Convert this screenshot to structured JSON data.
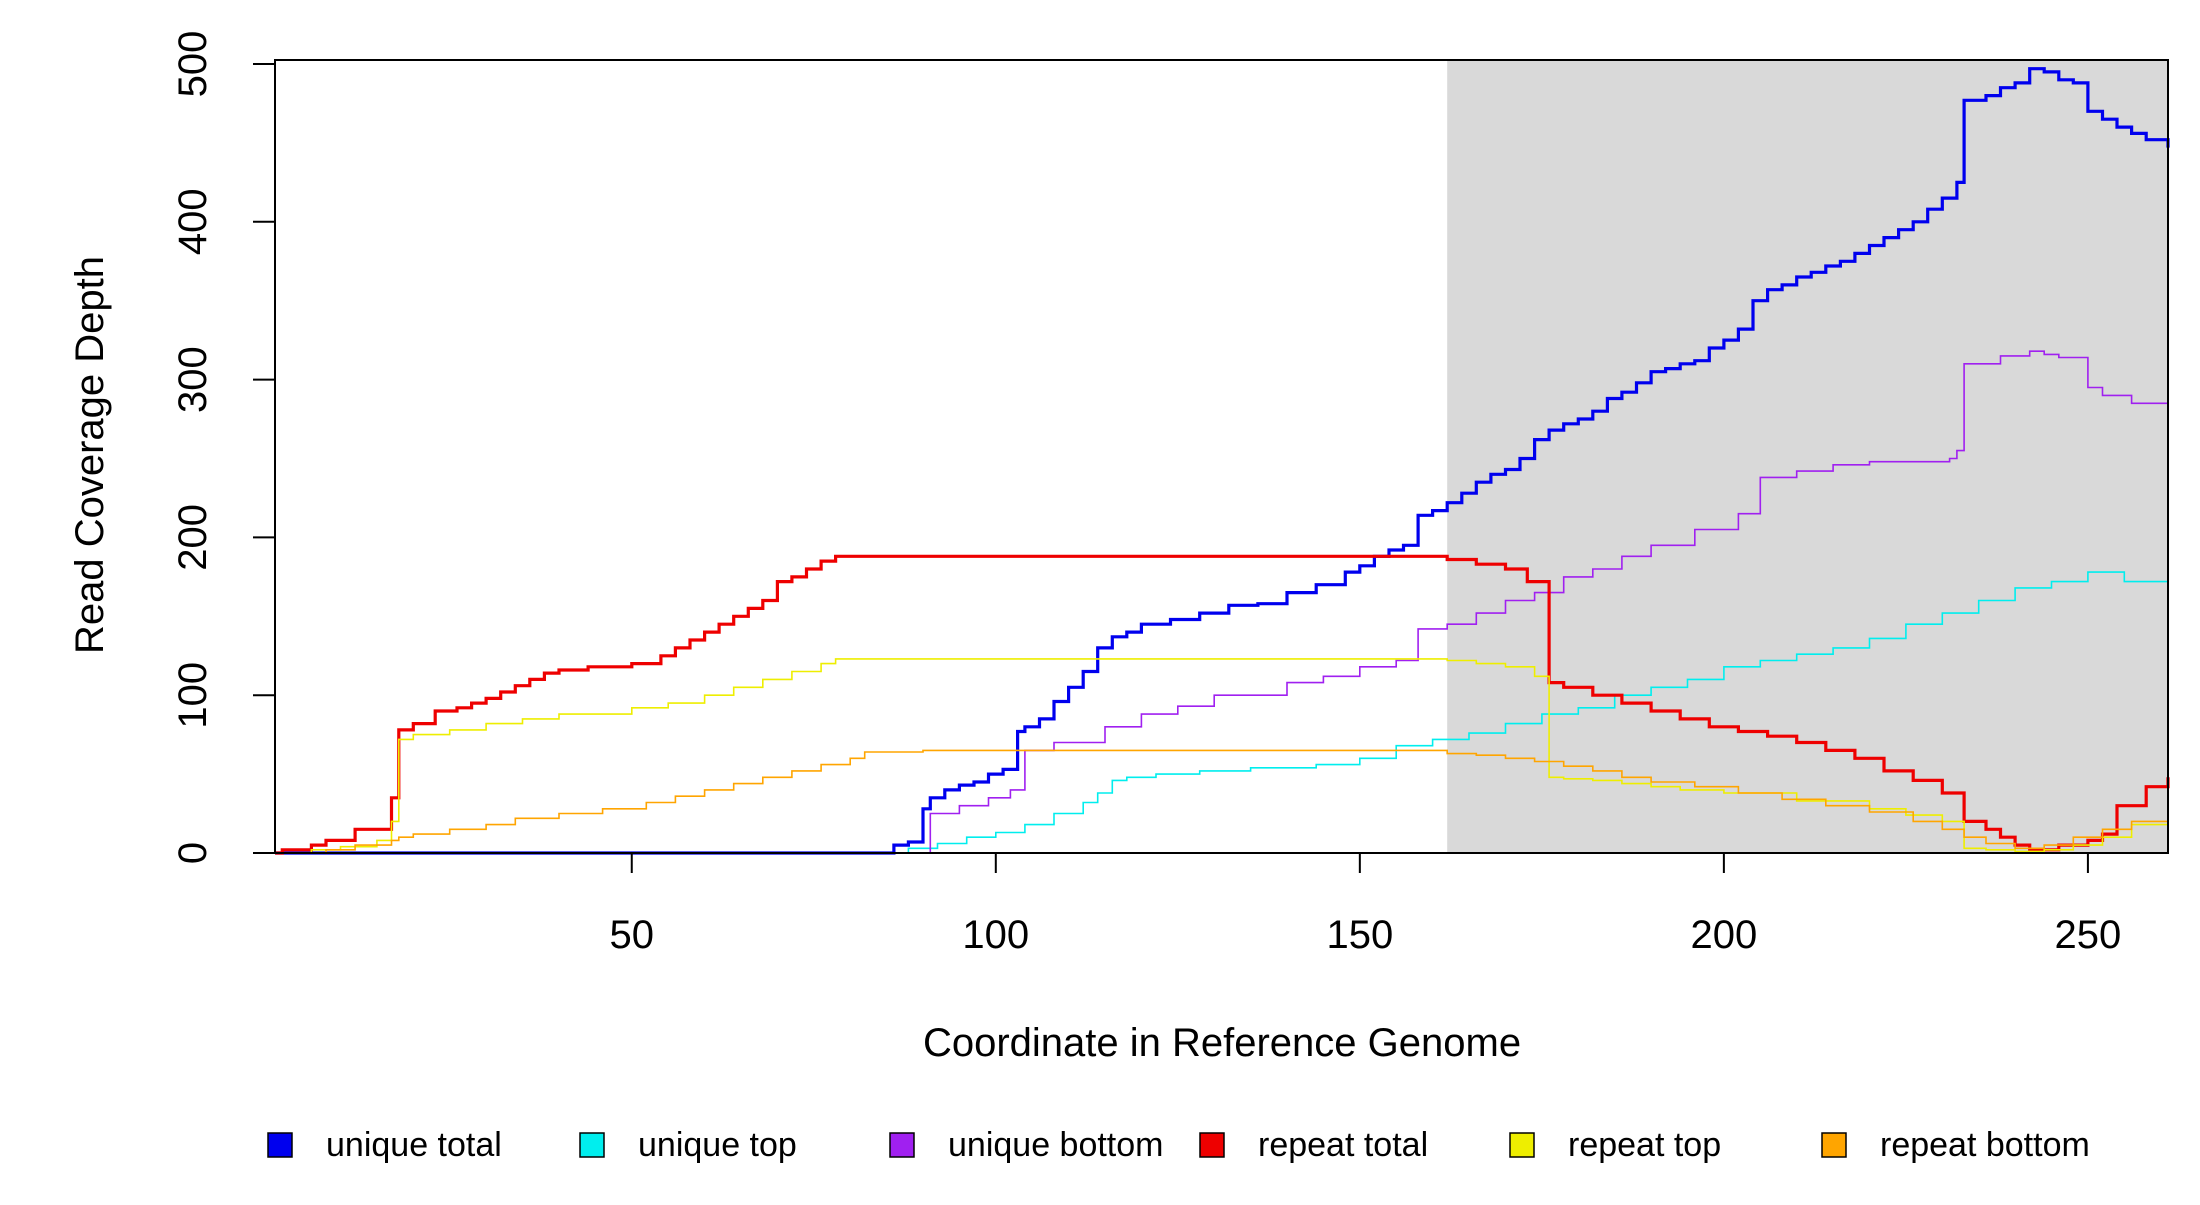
{
  "chart_data": {
    "type": "line",
    "title": "",
    "xlabel": "Coordinate in Reference Genome",
    "ylabel": "Read Coverage Depth",
    "xlim": [
      1,
      261
    ],
    "ylim": [
      0,
      500
    ],
    "xticks": [
      50,
      100,
      150,
      200,
      250
    ],
    "yticks": [
      0,
      100,
      200,
      300,
      400,
      500
    ],
    "step": true,
    "shaded_region": {
      "from": 162,
      "to": 261,
      "color": "#d9d9d9"
    },
    "legend_position": "bottom",
    "series": [
      {
        "name": "unique total",
        "color": "#0000ee",
        "x": [
          1,
          83,
          86,
          88,
          90,
          91,
          93,
          95,
          97,
          99,
          101,
          103,
          104,
          106,
          108,
          110,
          112,
          114,
          116,
          118,
          120,
          124,
          128,
          132,
          136,
          140,
          144,
          148,
          150,
          152,
          154,
          156,
          158,
          160,
          162,
          164,
          166,
          168,
          170,
          172,
          174,
          176,
          178,
          180,
          182,
          184,
          186,
          188,
          190,
          192,
          194,
          196,
          198,
          200,
          202,
          204,
          206,
          208,
          210,
          212,
          214,
          216,
          218,
          220,
          222,
          224,
          226,
          228,
          230,
          232,
          233,
          236,
          238,
          240,
          242,
          244,
          246,
          248,
          250,
          252,
          254,
          256,
          258,
          261
        ],
        "y": [
          0,
          0,
          5,
          7,
          28,
          35,
          40,
          43,
          45,
          50,
          53,
          77,
          80,
          85,
          96,
          105,
          115,
          130,
          137,
          140,
          145,
          148,
          152,
          157,
          158,
          165,
          170,
          178,
          182,
          188,
          192,
          195,
          214,
          217,
          222,
          228,
          235,
          240,
          243,
          250,
          262,
          268,
          272,
          275,
          280,
          288,
          292,
          298,
          305,
          307,
          310,
          312,
          320,
          325,
          332,
          350,
          357,
          360,
          365,
          368,
          372,
          375,
          380,
          385,
          390,
          395,
          400,
          408,
          415,
          425,
          477,
          480,
          485,
          488,
          497,
          495,
          490,
          488,
          470,
          465,
          460,
          456,
          452,
          447
        ]
      },
      {
        "name": "unique top",
        "color": "#00eeee",
        "x": [
          1,
          84,
          88,
          92,
          96,
          100,
          104,
          108,
          112,
          114,
          116,
          118,
          122,
          128,
          135,
          144,
          150,
          155,
          160,
          165,
          170,
          175,
          180,
          185,
          190,
          195,
          200,
          205,
          210,
          215,
          220,
          225,
          230,
          235,
          240,
          245,
          250,
          255,
          261
        ],
        "y": [
          0,
          0,
          3,
          6,
          10,
          13,
          18,
          25,
          32,
          38,
          46,
          48,
          50,
          52,
          54,
          56,
          60,
          68,
          72,
          76,
          82,
          88,
          92,
          100,
          105,
          110,
          118,
          122,
          126,
          130,
          136,
          145,
          152,
          160,
          168,
          172,
          178,
          172,
          168
        ]
      },
      {
        "name": "unique bottom",
        "color": "#a020f0",
        "x": [
          1,
          87,
          91,
          95,
          99,
          102,
          104,
          108,
          115,
          120,
          125,
          130,
          140,
          145,
          150,
          155,
          158,
          162,
          166,
          170,
          174,
          178,
          182,
          186,
          190,
          196,
          202,
          205,
          210,
          215,
          220,
          225,
          231,
          232,
          233,
          238,
          242,
          244,
          246,
          250,
          252,
          256,
          261
        ],
        "y": [
          0,
          0,
          25,
          30,
          35,
          40,
          65,
          70,
          80,
          88,
          93,
          100,
          108,
          112,
          118,
          122,
          142,
          145,
          152,
          160,
          165,
          175,
          180,
          188,
          195,
          205,
          215,
          238,
          242,
          246,
          248,
          248,
          250,
          255,
          310,
          315,
          318,
          316,
          314,
          295,
          290,
          285,
          280
        ]
      },
      {
        "name": "repeat total",
        "color": "#ee0000",
        "x": [
          1,
          2,
          6,
          8,
          12,
          17,
          18,
          20,
          23,
          26,
          28,
          30,
          32,
          34,
          36,
          38,
          40,
          44,
          50,
          54,
          56,
          58,
          60,
          62,
          64,
          66,
          68,
          70,
          72,
          74,
          76,
          78,
          80,
          82,
          90,
          100,
          150,
          160,
          162,
          166,
          170,
          173,
          176,
          178,
          182,
          186,
          190,
          194,
          198,
          202,
          206,
          210,
          214,
          218,
          222,
          226,
          230,
          233,
          236,
          238,
          240,
          242,
          246,
          250,
          252,
          254,
          258,
          261
        ],
        "y": [
          0,
          2,
          5,
          8,
          15,
          35,
          78,
          82,
          90,
          92,
          95,
          98,
          102,
          106,
          110,
          114,
          116,
          118,
          120,
          125,
          130,
          135,
          140,
          145,
          150,
          155,
          160,
          172,
          175,
          180,
          185,
          188,
          188,
          188,
          188,
          188,
          188,
          188,
          186,
          183,
          180,
          172,
          108,
          105,
          100,
          95,
          90,
          85,
          80,
          77,
          74,
          70,
          65,
          60,
          52,
          46,
          38,
          20,
          15,
          10,
          5,
          2,
          5,
          8,
          12,
          30,
          42,
          48
        ]
      },
      {
        "name": "repeat top",
        "color": "#eeee00",
        "x": [
          1,
          6,
          10,
          15,
          17,
          18,
          20,
          25,
          30,
          35,
          40,
          50,
          55,
          60,
          64,
          68,
          72,
          76,
          78,
          150,
          160,
          162,
          166,
          170,
          174,
          176,
          178,
          182,
          186,
          190,
          194,
          200,
          210,
          220,
          225,
          230,
          233,
          236,
          240,
          244,
          248,
          252,
          256,
          261
        ],
        "y": [
          0,
          2,
          4,
          8,
          20,
          72,
          75,
          78,
          82,
          85,
          88,
          92,
          95,
          100,
          105,
          110,
          115,
          120,
          123,
          123,
          123,
          122,
          120,
          118,
          112,
          48,
          47,
          46,
          44,
          42,
          40,
          38,
          33,
          28,
          24,
          20,
          3,
          2,
          1,
          2,
          5,
          10,
          18,
          25
        ]
      },
      {
        "name": "repeat bottom",
        "color": "#ffa500",
        "x": [
          1,
          8,
          12,
          17,
          18,
          20,
          25,
          30,
          34,
          40,
          46,
          52,
          56,
          60,
          64,
          68,
          72,
          76,
          80,
          82,
          90,
          150,
          160,
          162,
          166,
          170,
          174,
          178,
          182,
          186,
          190,
          196,
          202,
          208,
          214,
          220,
          226,
          230,
          233,
          236,
          240,
          244,
          248,
          252,
          256,
          261
        ],
        "y": [
          0,
          2,
          5,
          8,
          10,
          12,
          15,
          18,
          22,
          25,
          28,
          32,
          36,
          40,
          44,
          48,
          52,
          56,
          60,
          64,
          65,
          65,
          65,
          63,
          62,
          60,
          58,
          55,
          52,
          48,
          45,
          42,
          38,
          34,
          30,
          26,
          20,
          15,
          10,
          6,
          3,
          5,
          10,
          15,
          20,
          22
        ]
      }
    ]
  }
}
